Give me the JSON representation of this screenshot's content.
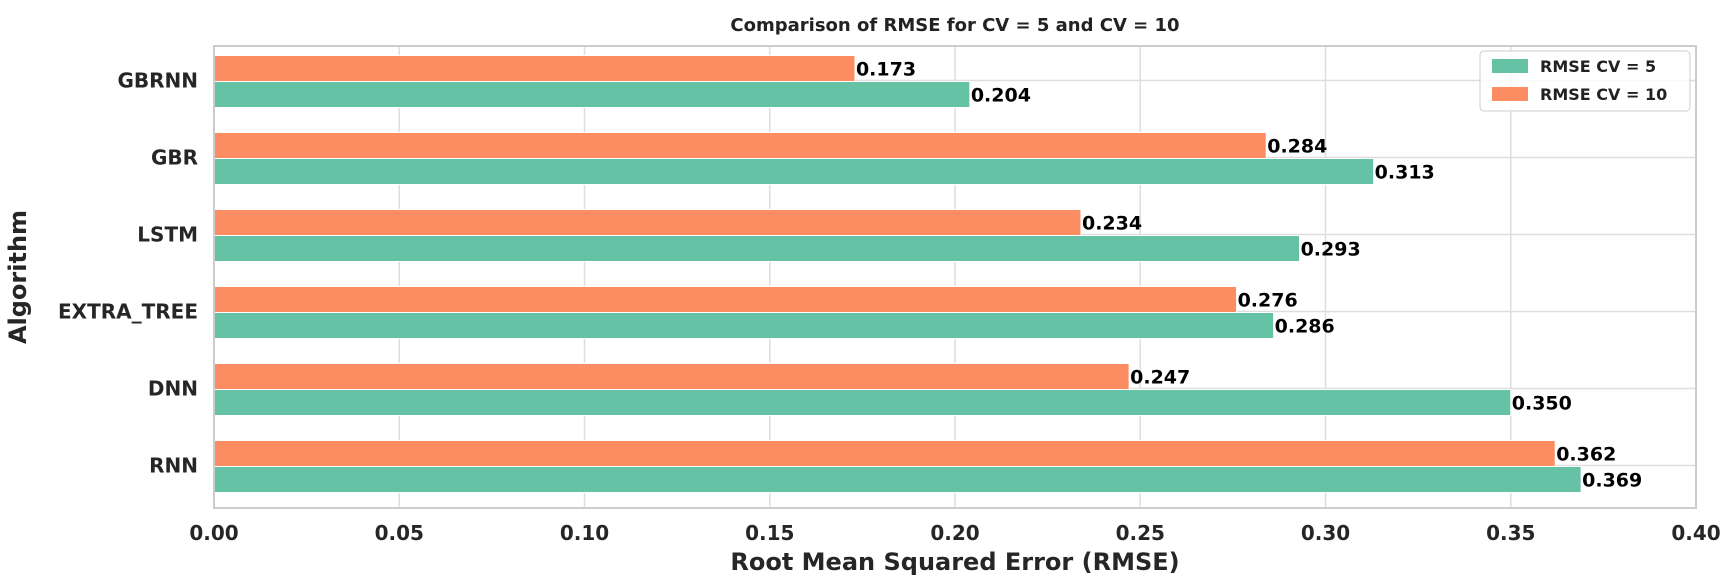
{
  "chart_data": {
    "type": "bar",
    "orientation": "horizontal",
    "title": "Comparison of RMSE for CV = 5 and CV = 10",
    "xlabel": "Root Mean Squared Error (RMSE)",
    "ylabel": "Algorithm",
    "categories": [
      "GBRNN",
      "GBR",
      "LSTM",
      "EXTRA_TREE",
      "DNN",
      "RNN"
    ],
    "series": [
      {
        "name": "RMSE CV = 5",
        "color": "#66c2a5",
        "values": [
          0.204,
          0.313,
          0.293,
          0.286,
          0.35,
          0.369
        ],
        "value_labels": [
          "0.204",
          "0.313",
          "0.293",
          "0.286",
          "0.350",
          "0.369"
        ]
      },
      {
        "name": "RMSE CV = 10",
        "color": "#fc8d62",
        "values": [
          0.173,
          0.284,
          0.234,
          0.276,
          0.247,
          0.362
        ],
        "value_labels": [
          "0.173",
          "0.284",
          "0.234",
          "0.276",
          "0.247",
          "0.362"
        ]
      }
    ],
    "xlim": [
      0,
      0.4
    ],
    "xticks": [
      0.0,
      0.05,
      0.1,
      0.15,
      0.2,
      0.25,
      0.3,
      0.35,
      0.4
    ],
    "xtick_labels": [
      "0.00",
      "0.05",
      "0.10",
      "0.15",
      "0.20",
      "0.25",
      "0.30",
      "0.35",
      "0.40"
    ],
    "grid": true,
    "legend_position": "top-right"
  }
}
